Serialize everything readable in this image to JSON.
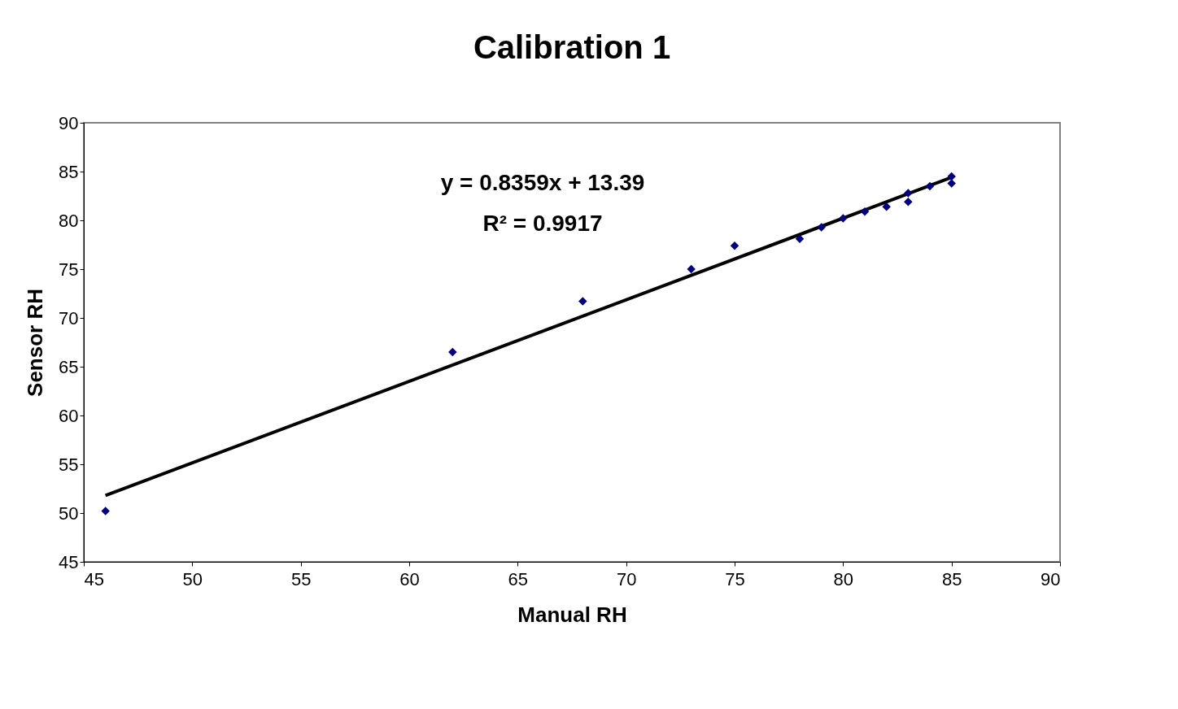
{
  "chart_data": {
    "type": "scatter",
    "title": "Calibration 1",
    "xlabel": "Manual RH",
    "ylabel": "Sensor RH",
    "x": [
      46,
      62,
      68,
      73,
      75,
      78,
      79,
      80,
      81,
      82,
      83,
      83,
      84,
      85,
      85
    ],
    "series": [
      {
        "color": "#000080",
        "values": [
          50.2,
          66.5,
          71.7,
          75.0,
          77.4,
          78.1,
          79.3,
          80.2,
          80.9,
          81.4,
          82.8,
          81.9,
          83.5,
          84.5,
          83.8
        ],
        "marker": "diamond"
      },
      {
        "type": "line",
        "color": "#000000",
        "x": [
          46,
          85
        ],
        "values": [
          51.8,
          84.4
        ],
        "marker": "none",
        "line_style": "solid"
      }
    ],
    "annotations": [
      "y = 0.8359x + 13.39",
      "R² = 0.9917"
    ],
    "xlim": [
      45,
      90
    ],
    "xticks": [
      45,
      50,
      55,
      60,
      65,
      70,
      75,
      80,
      85,
      90
    ],
    "ylim": [
      45,
      90
    ],
    "yticks": [
      45,
      50,
      55,
      60,
      65,
      70,
      75,
      80,
      85,
      90
    ],
    "grid": false
  }
}
